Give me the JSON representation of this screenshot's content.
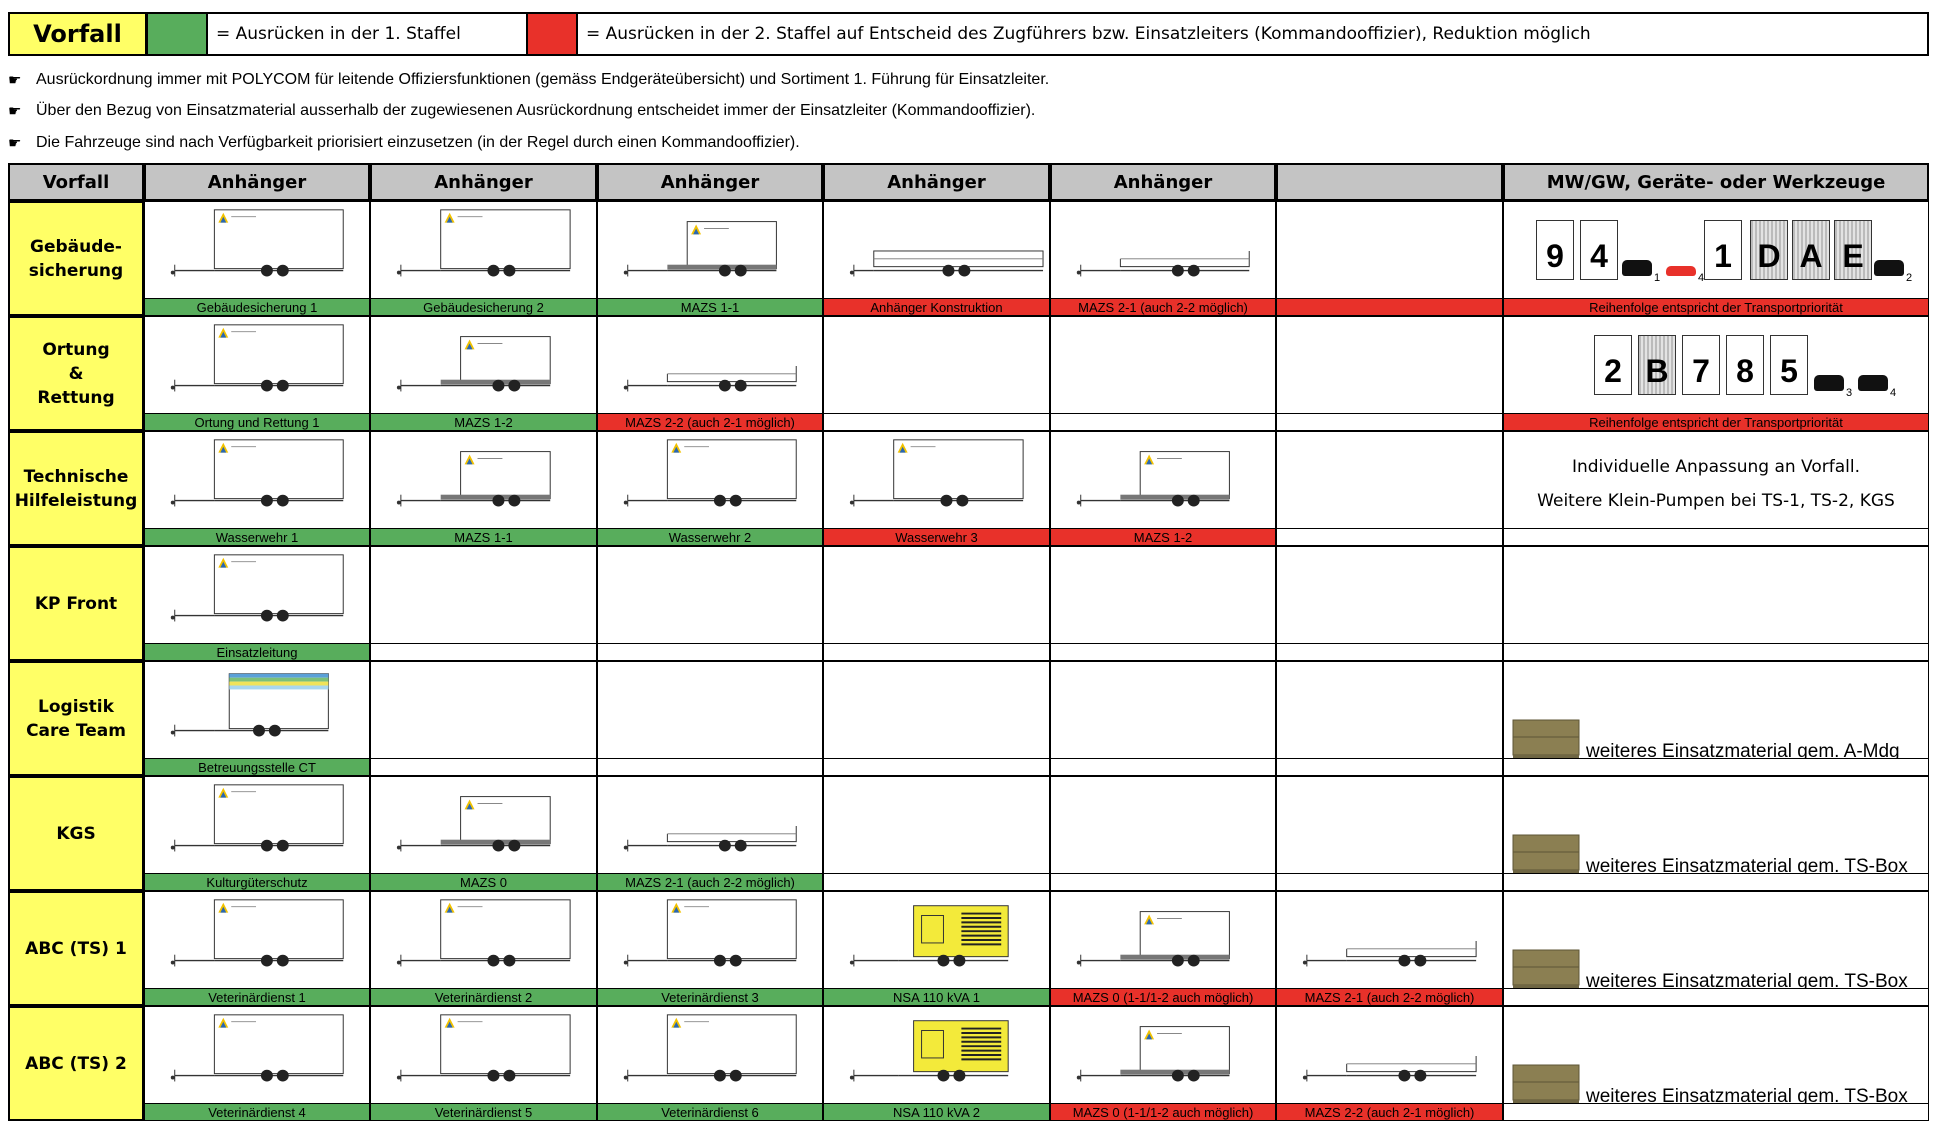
{
  "legend": {
    "title": "Vorfall",
    "green_label": "= Ausrücken in der 1. Staffel",
    "red_label": "= Ausrücken in der 2. Staffel auf Entscheid des Zugführers bzw. Einsatzleiters (Kommandooffizier), Reduktion möglich",
    "colors": {
      "green": "#58ad5c",
      "red": "#e8312a",
      "yellow": "#ffff66",
      "header": "#c4c4c4"
    }
  },
  "notes": [
    "Ausrückordnung immer mit POLYCOM für leitende Offiziersfunktionen (gemäss Endgeräteübersicht) und Sortiment 1. Führung für Einsatzleiter.",
    "Über den Bezug von Einsatzmaterial ausserhalb der zugewiesenen Ausrückordnung entscheidet immer der Einsatzleiter (Kommandooffizier).",
    "Die Fahrzeuge sind nach Verfügbarkeit priorisiert einzusetzen (in der Regel durch einen Kommandooffizier)."
  ],
  "headers": [
    "Vorfall",
    "Anhänger",
    "Anhänger",
    "Anhänger",
    "Anhänger",
    "Anhänger",
    "",
    "MW/GW, Geräte- oder Werkzeuge"
  ],
  "rows": [
    {
      "label": "Gebäude-\nsicherung",
      "cells": [
        {
          "type": "box",
          "cap": "Gebäudesicherung 1",
          "color": "g"
        },
        {
          "type": "box",
          "cap": "Gebäudesicherung 2",
          "color": "g"
        },
        {
          "type": "mazs",
          "cap": "MAZS 1-1",
          "color": "g"
        },
        {
          "type": "flatlong",
          "cap": "Anhänger Konstruktion",
          "color": "r"
        },
        {
          "type": "flat",
          "cap": "MAZS 2-1 (auch 2-2 möglich)",
          "color": "r"
        },
        {
          "type": "empty",
          "cap": "",
          "color": "r"
        }
      ],
      "extra": {
        "kind": "boxes1",
        "cap": "Reihenfolge entspricht der Transportpriorität",
        "color": "r"
      }
    },
    {
      "label": "Ortung\n&\nRettung",
      "cells": [
        {
          "type": "box",
          "cap": "Ortung und Rettung 1",
          "color": "g"
        },
        {
          "type": "mazs",
          "cap": "MAZS 1-2",
          "color": "g"
        },
        {
          "type": "flat",
          "cap": "MAZS 2-2 (auch 2-1 möglich)",
          "color": "r"
        },
        {
          "type": "empty",
          "cap": "",
          "color": "w"
        },
        {
          "type": "empty",
          "cap": "",
          "color": "w"
        },
        {
          "type": "empty",
          "cap": "",
          "color": "w"
        }
      ],
      "extra": {
        "kind": "boxes2",
        "cap": "Reihenfolge entspricht der Transportpriorität",
        "color": "r"
      }
    },
    {
      "label": "Technische\nHilfeleistung",
      "cells": [
        {
          "type": "box",
          "cap": "Wasserwehr 1",
          "color": "g"
        },
        {
          "type": "mazs",
          "cap": "MAZS 1-1",
          "color": "g"
        },
        {
          "type": "box",
          "cap": "Wasserwehr 2",
          "color": "g"
        },
        {
          "type": "box",
          "cap": "Wasserwehr 3",
          "color": "r"
        },
        {
          "type": "mazs",
          "cap": "MAZS 1-2",
          "color": "r"
        },
        {
          "type": "empty",
          "cap": "",
          "color": "w"
        }
      ],
      "extra": {
        "kind": "text",
        "line1": "Individuelle Anpassung an Vorfall.",
        "line2": "Weitere Klein-Pumpen bei TS-1, TS-2, KGS",
        "cap": "",
        "color": "w"
      }
    },
    {
      "label": "KP Front",
      "cells": [
        {
          "type": "box",
          "cap": "Einsatzleitung",
          "color": "g"
        },
        {
          "type": "empty",
          "cap": "",
          "color": "w"
        },
        {
          "type": "empty",
          "cap": "",
          "color": "w"
        },
        {
          "type": "empty",
          "cap": "",
          "color": "w"
        },
        {
          "type": "empty",
          "cap": "",
          "color": "w"
        },
        {
          "type": "empty",
          "cap": "",
          "color": "w"
        }
      ],
      "extra": {
        "kind": "none",
        "cap": "",
        "color": "w"
      }
    },
    {
      "label": "Logistik\nCare Team",
      "cells": [
        {
          "type": "care",
          "cap": "Betreuungsstelle CT",
          "color": "g"
        },
        {
          "type": "empty",
          "cap": "",
          "color": "w"
        },
        {
          "type": "empty",
          "cap": "",
          "color": "w"
        },
        {
          "type": "empty",
          "cap": "",
          "color": "w"
        },
        {
          "type": "empty",
          "cap": "",
          "color": "w"
        },
        {
          "type": "empty",
          "cap": "",
          "color": "w"
        }
      ],
      "extra": {
        "kind": "material",
        "text": "weiteres Einsatzmaterial gem. A-Mdg",
        "cap": "",
        "color": "w"
      }
    },
    {
      "label": "KGS",
      "cells": [
        {
          "type": "box",
          "cap": "Kulturgüterschutz",
          "color": "g"
        },
        {
          "type": "mazs",
          "cap": "MAZS 0",
          "color": "g"
        },
        {
          "type": "flat",
          "cap": "MAZS 2-1 (auch 2-2 möglich)",
          "color": "g"
        },
        {
          "type": "empty",
          "cap": "",
          "color": "w"
        },
        {
          "type": "empty",
          "cap": "",
          "color": "w"
        },
        {
          "type": "empty",
          "cap": "",
          "color": "w"
        }
      ],
      "extra": {
        "kind": "material",
        "text": "weiteres Einsatzmaterial gem. TS-Box",
        "cap": "",
        "color": "w"
      }
    },
    {
      "label": "ABC (TS) 1",
      "cells": [
        {
          "type": "box",
          "cap": "Veterinärdienst 1",
          "color": "g"
        },
        {
          "type": "box",
          "cap": "Veterinärdienst 2",
          "color": "g"
        },
        {
          "type": "box",
          "cap": "Veterinärdienst 3",
          "color": "g"
        },
        {
          "type": "gen",
          "cap": "NSA 110 kVA 1",
          "color": "g"
        },
        {
          "type": "mazs",
          "cap": "MAZS 0 (1-1/1-2 auch möglich)",
          "color": "r"
        },
        {
          "type": "flat",
          "cap": "MAZS 2-1 (auch 2-2 möglich)",
          "color": "r"
        }
      ],
      "extra": {
        "kind": "material",
        "text": "weiteres Einsatzmaterial gem. TS-Box",
        "cap": "",
        "color": "w"
      }
    },
    {
      "label": "ABC (TS) 2",
      "cells": [
        {
          "type": "box",
          "cap": "Veterinärdienst 4",
          "color": "g"
        },
        {
          "type": "box",
          "cap": "Veterinärdienst 5",
          "color": "g"
        },
        {
          "type": "box",
          "cap": "Veterinärdienst 6",
          "color": "g"
        },
        {
          "type": "gen",
          "cap": "NSA 110 kVA 2",
          "color": "g"
        },
        {
          "type": "mazs",
          "cap": "MAZS 0 (1-1/1-2 auch möglich)",
          "color": "r"
        },
        {
          "type": "flat",
          "cap": "MAZS 2-2 (auch 2-1 möglich)",
          "color": "r"
        }
      ],
      "extra": {
        "kind": "material",
        "text": "weiteres Einsatzmaterial gem. TS-Box",
        "cap": "",
        "color": "w"
      }
    }
  ],
  "boxes1": {
    "items": [
      "9",
      "4",
      "1",
      "D",
      "A",
      "E"
    ],
    "subs": [
      "1",
      "4",
      "2"
    ]
  },
  "boxes2": {
    "items": [
      "2",
      "B",
      "7",
      "8",
      "5"
    ],
    "subs": [
      "3",
      "4"
    ]
  }
}
